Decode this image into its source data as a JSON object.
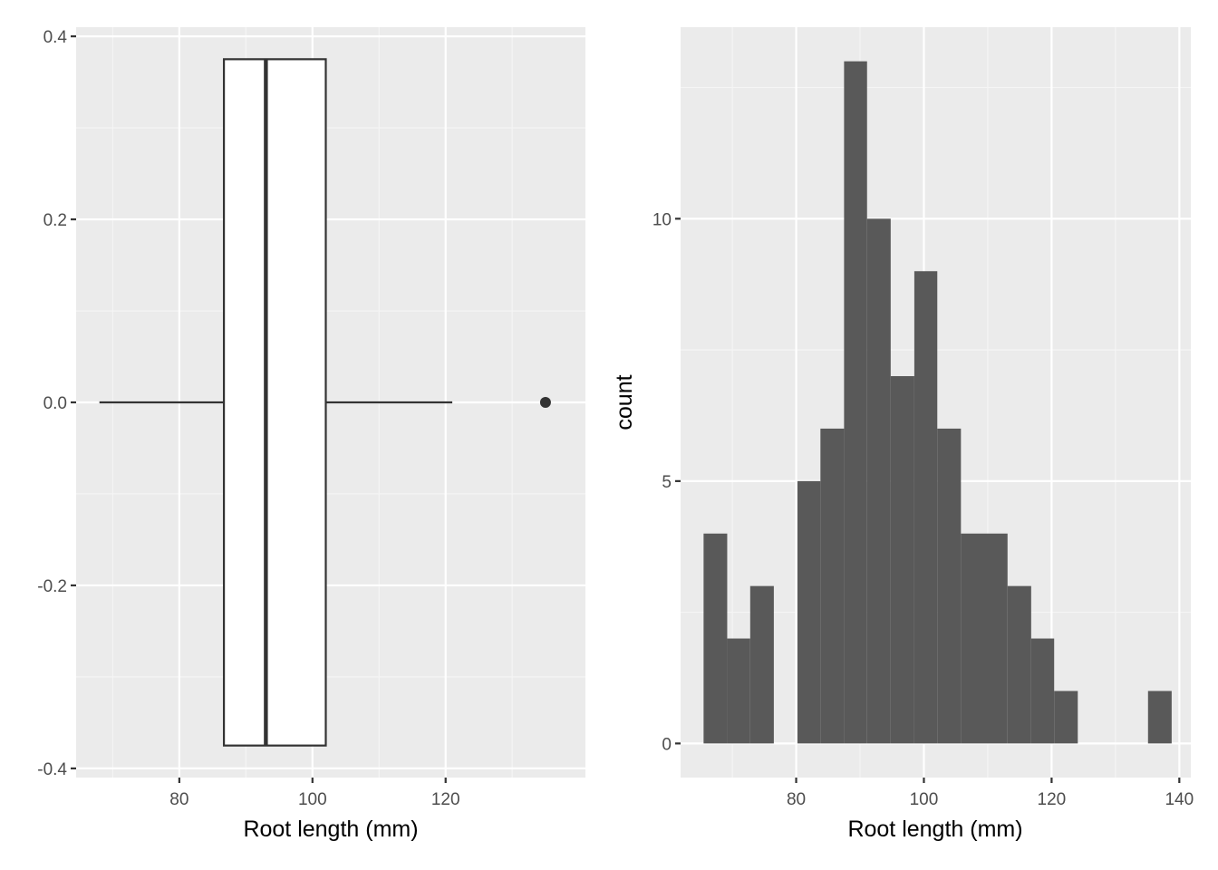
{
  "colors": {
    "panel_background": "#ebebeb",
    "grid_major": "#ffffff",
    "grid_minor": "#f5f5f5",
    "box_fill": "#ffffff",
    "box_line": "#333333",
    "bar_fill": "#595959",
    "tick_text": "#4d4d4d",
    "title_text": "#000000"
  },
  "chart_data": [
    {
      "type": "boxplot",
      "title": "",
      "xlabel": "Root length (mm)",
      "ylabel": "",
      "xlim": [
        64.5,
        141
      ],
      "ylim": [
        -0.41,
        0.41
      ],
      "x_ticks": [
        80,
        100,
        120
      ],
      "x_tick_labels": [
        "80",
        "100",
        "120"
      ],
      "y_ticks": [
        0.4,
        0.2,
        0.0,
        -0.2,
        -0.4
      ],
      "y_tick_labels": [
        "0.4",
        "0.2",
        "0.0",
        "-0.2",
        "-0.4"
      ],
      "box": {
        "whisker_low": 68,
        "q1": 86.7,
        "median": 93,
        "q3": 102,
        "whisker_high": 121,
        "y_center": 0.0,
        "half_width": 0.375
      },
      "outliers": [
        {
          "x": 135,
          "y": 0.0
        }
      ],
      "grid": true
    },
    {
      "type": "bar",
      "subtype": "histogram",
      "title": "",
      "xlabel": "Root length (mm)",
      "ylabel": "count",
      "xlim": [
        61.9,
        141.8
      ],
      "ylim": [
        -0.65,
        13.65
      ],
      "x_ticks": [
        80,
        100,
        120,
        140
      ],
      "x_tick_labels": [
        "80",
        "100",
        "120",
        "140"
      ],
      "y_ticks": [
        0,
        5,
        10
      ],
      "y_tick_labels": [
        "0",
        "5",
        "10"
      ],
      "bins": [
        {
          "x0": 65.5,
          "x1": 69.2,
          "count": 4
        },
        {
          "x0": 69.2,
          "x1": 72.8,
          "count": 2
        },
        {
          "x0": 72.8,
          "x1": 76.5,
          "count": 3
        },
        {
          "x0": 76.5,
          "x1": 80.2,
          "count": 0
        },
        {
          "x0": 80.2,
          "x1": 83.8,
          "count": 5
        },
        {
          "x0": 83.8,
          "x1": 87.5,
          "count": 6
        },
        {
          "x0": 87.5,
          "x1": 91.1,
          "count": 13
        },
        {
          "x0": 91.1,
          "x1": 94.8,
          "count": 10
        },
        {
          "x0": 94.8,
          "x1": 98.5,
          "count": 7
        },
        {
          "x0": 98.5,
          "x1": 102.1,
          "count": 9
        },
        {
          "x0": 102.1,
          "x1": 105.8,
          "count": 6
        },
        {
          "x0": 105.8,
          "x1": 113.1,
          "count": 4
        },
        {
          "x0": 113.1,
          "x1": 116.8,
          "count": 3
        },
        {
          "x0": 116.8,
          "x1": 120.4,
          "count": 2
        },
        {
          "x0": 120.4,
          "x1": 124.1,
          "count": 1
        },
        {
          "x0": 124.1,
          "x1": 135.1,
          "count": 0
        },
        {
          "x0": 135.1,
          "x1": 138.8,
          "count": 1
        }
      ],
      "grid": true
    }
  ]
}
